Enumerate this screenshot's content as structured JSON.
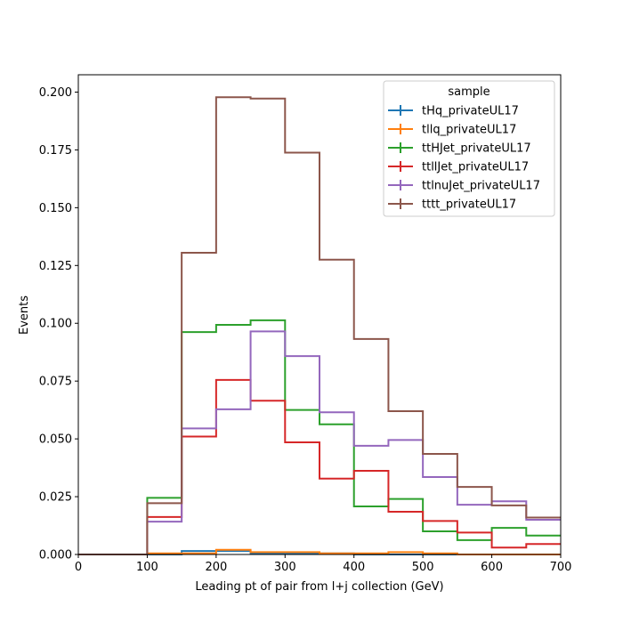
{
  "chart_data": {
    "type": "line",
    "drawstyle": "step-histogram",
    "xlabel": "Leading pt of pair from l+j collection (GeV)",
    "ylabel": "Events",
    "xlim": [
      0,
      700
    ],
    "ylim": [
      0,
      0.2075
    ],
    "xticks": [
      0,
      100,
      200,
      300,
      400,
      500,
      600,
      700
    ],
    "xtick_labels": [
      "0",
      "100",
      "200",
      "300",
      "400",
      "500",
      "600",
      "700"
    ],
    "yticks": [
      0,
      0.025,
      0.05,
      0.075,
      0.1,
      0.125,
      0.15,
      0.175,
      0.2
    ],
    "ytick_labels": [
      "0.000",
      "0.025",
      "0.050",
      "0.075",
      "0.100",
      "0.125",
      "0.150",
      "0.175",
      "0.200"
    ],
    "grid": false,
    "legend_title": "sample",
    "legend_position": "top-right",
    "bin_edges": [
      0,
      50,
      100,
      150,
      200,
      250,
      300,
      350,
      400,
      450,
      500,
      550,
      600,
      650,
      700
    ],
    "series": [
      {
        "name": "tHq_privateUL17",
        "color": "#1f77b4",
        "values": [
          0,
          0,
          0,
          0.0015,
          0.0015,
          0.0005,
          0.0005,
          0.0005,
          0,
          0,
          0,
          0,
          0,
          0
        ]
      },
      {
        "name": "tllq_privateUL17",
        "color": "#ff7f0e",
        "values": [
          0,
          0,
          0.0005,
          0.0005,
          0.002,
          0.001,
          0.001,
          0.0005,
          0.0005,
          0.001,
          0.0005,
          0,
          0,
          0
        ]
      },
      {
        "name": "ttHJet_privateUL17",
        "color": "#2ca02c",
        "values": [
          0,
          0,
          0.0245,
          0.0962,
          0.0993,
          0.1013,
          0.0625,
          0.0563,
          0.0208,
          0.024,
          0.01,
          0.0062,
          0.0115,
          0.0082
        ]
      },
      {
        "name": "ttllJet_privateUL17",
        "color": "#d62728",
        "values": [
          0,
          0,
          0.0162,
          0.051,
          0.0755,
          0.0665,
          0.0485,
          0.0328,
          0.0362,
          0.0185,
          0.0145,
          0.0095,
          0.003,
          0.0045
        ]
      },
      {
        "name": "ttlnuJet_privateUL17",
        "color": "#9467bd",
        "values": [
          0,
          0,
          0.0142,
          0.0545,
          0.0628,
          0.0965,
          0.0858,
          0.0615,
          0.047,
          0.0495,
          0.0335,
          0.0215,
          0.023,
          0.015
        ]
      },
      {
        "name": "tttt_privateUL17",
        "color": "#8c564b",
        "values": [
          0,
          0,
          0.0222,
          0.1305,
          0.1978,
          0.1972,
          0.1738,
          0.1275,
          0.0932,
          0.062,
          0.0435,
          0.0292,
          0.0212,
          0.016
        ]
      }
    ]
  }
}
